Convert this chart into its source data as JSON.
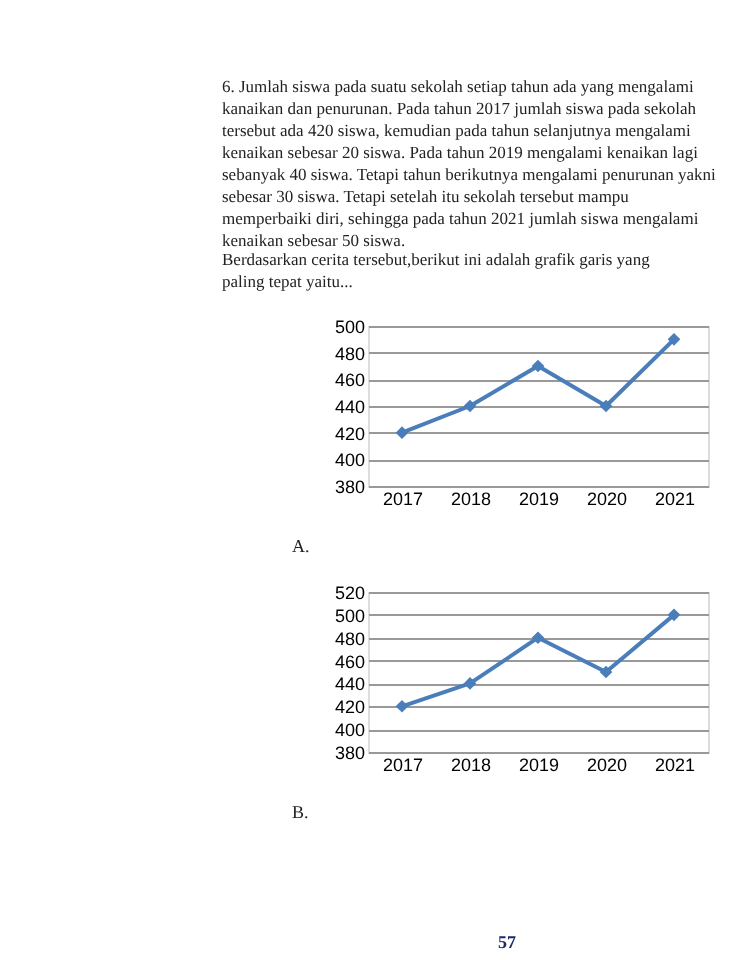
{
  "chart_data": [
    {
      "type": "line",
      "title": "6. Jumlah siswa pada suatu sekolah setiap tahun ada yang mengalami kanaikan dan penurunan. Pada tahun 2017 jumlah siswa pada sekolah tersebut ada 420 siswa, kemudian pada tahun selanjutnya mengalami kenaikan sebesar 20 siswa. Pada tahun 2019 mengalami kenaikan lagi sebanyak 40 siswa. Tetapi tahun berikutnya mengalami penurunan yakni sebesar 30 siswa. Tetapi setelah itu sekolah tersebut mampu memperbaiki diri, sehingga pada tahun 2021 jumlah siswa mengalami kenaikan sebesar 50 siswa.",
      "subtitle": "Berdasarkan cerita tersebut,berikut ini adalah grafik garis yang paling tepat yaitu...",
      "categories": [
        "2017",
        "2018",
        "2019",
        "2020",
        "2021"
      ],
      "series": [
        {
          "color": "#4a7ebb",
          "values": [
            420,
            440,
            470,
            440,
            490
          ]
        }
      ],
      "ylim": [
        380,
        500
      ],
      "yticks": [
        380,
        400,
        420,
        440,
        460,
        480,
        500
      ],
      "grid": "y",
      "marker": "diamond",
      "annotations": [
        "A."
      ]
    },
    {
      "type": "line",
      "categories": [
        "2017",
        "2018",
        "2019",
        "2020",
        "2021"
      ],
      "series": [
        {
          "color": "#4a7ebb",
          "values": [
            420,
            440,
            480,
            450,
            500
          ]
        }
      ],
      "ylim": [
        380,
        520
      ],
      "yticks": [
        380,
        400,
        420,
        440,
        460,
        480,
        500,
        520
      ],
      "grid": "y",
      "marker": "diamond",
      "annotations": [
        "B.",
        "57"
      ]
    }
  ]
}
